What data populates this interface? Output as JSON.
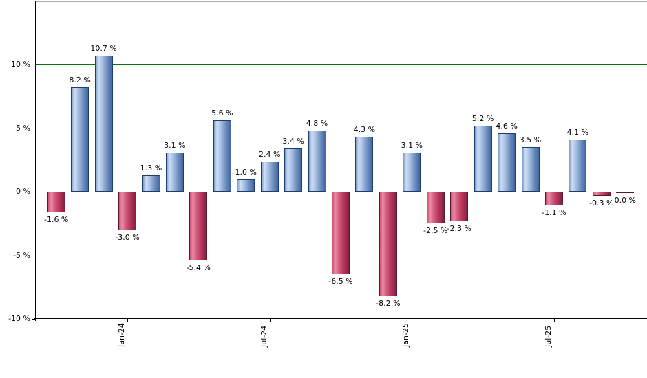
{
  "chart_data": {
    "type": "bar",
    "title": "",
    "xlabel": "",
    "ylabel": "",
    "ylim": [
      -10,
      15
    ],
    "grid": "horizontal",
    "legend": "none",
    "y_ticks": [
      {
        "value": 10,
        "label": "10 %"
      },
      {
        "value": 5,
        "label": "5 %"
      },
      {
        "value": 0,
        "label": "0 %"
      },
      {
        "value": -5,
        "label": "-5 %"
      },
      {
        "value": -10,
        "label": "-10 %"
      }
    ],
    "x_ticks": [
      {
        "label": "Jan-24",
        "bar_index": 3
      },
      {
        "label": "Jul-24",
        "bar_index": 9
      },
      {
        "label": "Jan-25",
        "bar_index": 15
      },
      {
        "label": "Jul-25",
        "bar_index": 21
      }
    ],
    "reference_line": {
      "value": 10,
      "color": "#0a720a"
    },
    "bars": [
      {
        "value": -1.6,
        "label": "-1.6 %"
      },
      {
        "value": 8.2,
        "label": "8.2 %"
      },
      {
        "value": 10.7,
        "label": "10.7 %"
      },
      {
        "value": -3.0,
        "label": "-3.0 %"
      },
      {
        "value": 1.3,
        "label": "1.3 %"
      },
      {
        "value": 3.1,
        "label": "3.1 %"
      },
      {
        "value": -5.4,
        "label": "-5.4 %"
      },
      {
        "value": 5.6,
        "label": "5.6 %"
      },
      {
        "value": 1.0,
        "label": "1.0 %"
      },
      {
        "value": 2.4,
        "label": "2.4 %"
      },
      {
        "value": 3.4,
        "label": "3.4 %"
      },
      {
        "value": 4.8,
        "label": "4.8 %"
      },
      {
        "value": -6.5,
        "label": "-6.5 %"
      },
      {
        "value": 4.3,
        "label": "4.3 %"
      },
      {
        "value": -8.2,
        "label": "-8.2 %"
      },
      {
        "value": 3.1,
        "label": "3.1 %"
      },
      {
        "value": -2.5,
        "label": "-2.5 %"
      },
      {
        "value": -2.3,
        "label": "-2.3 %"
      },
      {
        "value": 5.2,
        "label": "5.2 %"
      },
      {
        "value": 4.6,
        "label": "4.6 %"
      },
      {
        "value": 3.5,
        "label": "3.5 %"
      },
      {
        "value": -1.1,
        "label": "-1.1 %"
      },
      {
        "value": 4.1,
        "label": "4.1 %"
      },
      {
        "value": -0.3,
        "label": "-0.3 %"
      },
      {
        "value": 0.0,
        "label": "0.0 %"
      }
    ],
    "colors": {
      "positive_fill": "#94b0da",
      "positive_border": "#1c3e6e",
      "negative_fill": "#c74063",
      "negative_border": "#571931",
      "gridline": "#cccccc",
      "axis": "#000000",
      "reference": "#0a720a"
    }
  }
}
